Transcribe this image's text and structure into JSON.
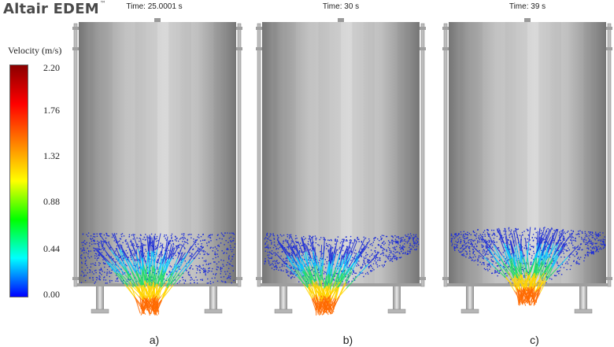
{
  "brand": {
    "name": "Altair EDEM",
    "tm": "™"
  },
  "legend": {
    "title": "Velocity (m/s)",
    "ticks": [
      "2.20",
      "1.76",
      "1.32",
      "0.88",
      "0.44",
      "0.00"
    ],
    "colors": [
      "#0000ff",
      "#00ffff",
      "#00ff00",
      "#ffff00",
      "#ff7f00",
      "#ff0000",
      "#8b0000"
    ]
  },
  "panels": [
    {
      "time": "Time: 25.0001 s",
      "caption": "a)"
    },
    {
      "time": "Time: 30 s",
      "caption": "b)"
    },
    {
      "time": "Time: 39 s",
      "caption": "c)"
    }
  ],
  "colors": {
    "silo_light": "#d8d8d8",
    "silo_dark": "#8a8a8a",
    "particles": "#1f2fd6"
  }
}
